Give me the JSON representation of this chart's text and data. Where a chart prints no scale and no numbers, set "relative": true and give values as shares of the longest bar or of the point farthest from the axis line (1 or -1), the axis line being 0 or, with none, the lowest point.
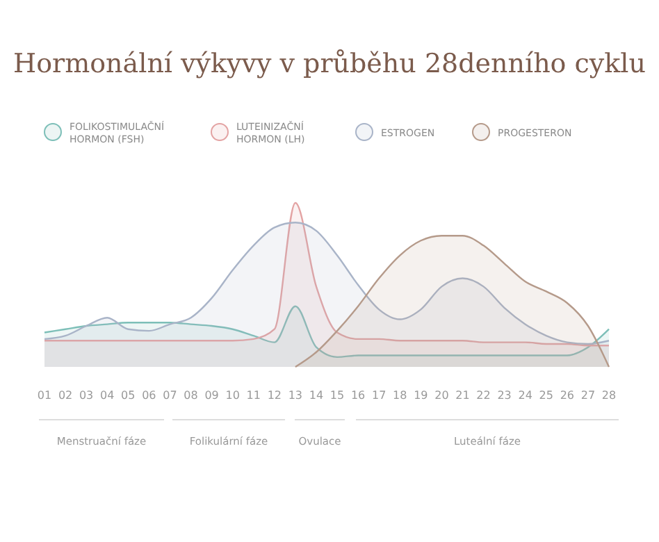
{
  "chart_data": {
    "type": "area",
    "title": "Hormonální výkyvy v průběhu 28denního cyklu",
    "relative": true,
    "legend": "top",
    "grid": false,
    "categories": [
      "01",
      "02",
      "03",
      "04",
      "05",
      "06",
      "07",
      "08",
      "09",
      "10",
      "11",
      "12",
      "13",
      "14",
      "15",
      "16",
      "17",
      "18",
      "19",
      "20",
      "21",
      "22",
      "23",
      "24",
      "25",
      "26",
      "27",
      "28"
    ],
    "series": [
      {
        "name": "FOLIKOSTIMULAČNÍ HORMON (FSH)",
        "color": "#7dbfb8",
        "values": [
          0.21,
          0.23,
          0.25,
          0.26,
          0.27,
          0.27,
          0.27,
          0.26,
          0.25,
          0.23,
          0.19,
          0.15,
          0.37,
          0.12,
          0.06,
          0.07,
          0.07,
          0.07,
          0.07,
          0.07,
          0.07,
          0.07,
          0.07,
          0.07,
          0.07,
          0.07,
          0.12,
          0.23
        ]
      },
      {
        "name": "LUTEINIZAČNÍ HORMON (LH)",
        "color": "#e3a3a3",
        "values": [
          0.16,
          0.16,
          0.16,
          0.16,
          0.16,
          0.16,
          0.16,
          0.16,
          0.16,
          0.16,
          0.17,
          0.23,
          1.0,
          0.49,
          0.21,
          0.17,
          0.17,
          0.16,
          0.16,
          0.16,
          0.16,
          0.15,
          0.15,
          0.15,
          0.14,
          0.14,
          0.13,
          0.13
        ]
      },
      {
        "name": "ESTROGEN",
        "color": "#a9b4c8",
        "values": [
          0.17,
          0.19,
          0.25,
          0.3,
          0.23,
          0.22,
          0.26,
          0.3,
          0.42,
          0.59,
          0.74,
          0.85,
          0.88,
          0.83,
          0.68,
          0.5,
          0.35,
          0.29,
          0.35,
          0.49,
          0.54,
          0.49,
          0.36,
          0.26,
          0.19,
          0.15,
          0.14,
          0.16
        ]
      },
      {
        "name": "PROGESTERON",
        "color": "#b59a8a",
        "values": [
          null,
          null,
          null,
          null,
          null,
          null,
          null,
          null,
          null,
          null,
          null,
          null,
          0,
          0.09,
          0.22,
          0.37,
          0.54,
          0.68,
          0.77,
          0.8,
          0.8,
          0.74,
          0.63,
          0.52,
          0.46,
          0.39,
          0.25,
          0
        ]
      }
    ],
    "annotations": [
      "Menstruační fáze",
      "Folikulární fáze",
      "Ovulace",
      "Luteální fáze"
    ]
  }
}
